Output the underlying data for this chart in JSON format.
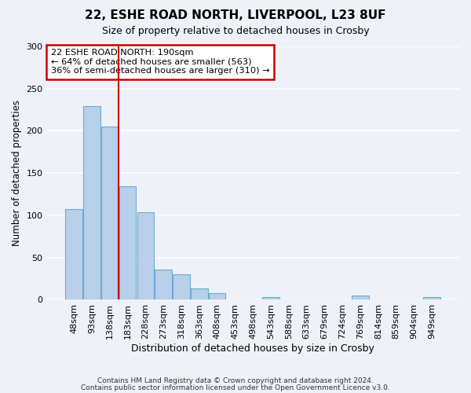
{
  "title": "22, ESHE ROAD NORTH, LIVERPOOL, L23 8UF",
  "subtitle": "Size of property relative to detached houses in Crosby",
  "xlabel": "Distribution of detached houses by size in Crosby",
  "ylabel": "Number of detached properties",
  "bar_labels": [
    "48sqm",
    "93sqm",
    "138sqm",
    "183sqm",
    "228sqm",
    "273sqm",
    "318sqm",
    "363sqm",
    "408sqm",
    "453sqm",
    "498sqm",
    "543sqm",
    "588sqm",
    "633sqm",
    "679sqm",
    "724sqm",
    "769sqm",
    "814sqm",
    "859sqm",
    "904sqm",
    "949sqm"
  ],
  "bar_values": [
    107,
    229,
    205,
    134,
    104,
    36,
    30,
    13,
    8,
    0,
    0,
    3,
    0,
    0,
    0,
    0,
    5,
    0,
    0,
    0,
    3
  ],
  "bar_color": "#b8d0ea",
  "bar_edge_color": "#6aaad4",
  "ylim": [
    0,
    300
  ],
  "yticks": [
    0,
    50,
    100,
    150,
    200,
    250,
    300
  ],
  "vline_color": "#cc0000",
  "annotation_title": "22 ESHE ROAD NORTH: 190sqm",
  "annotation_line1": "← 64% of detached houses are smaller (563)",
  "annotation_line2": "36% of semi-detached houses are larger (310) →",
  "annotation_box_color": "#cc0000",
  "footer_line1": "Contains HM Land Registry data © Crown copyright and database right 2024.",
  "footer_line2": "Contains public sector information licensed under the Open Government Licence v3.0.",
  "background_color": "#eef2f8",
  "grid_color": "#ffffff"
}
